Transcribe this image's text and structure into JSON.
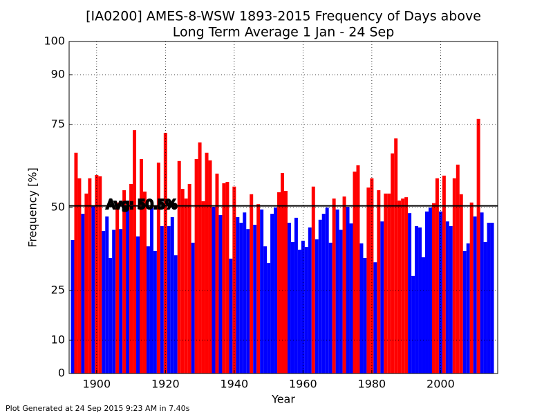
{
  "chart_data": {
    "type": "bar",
    "title": [
      "[IA0200] AMES-8-WSW 1893-2015 Frequency of Days above",
      "Long Term Average 1 Jan - 24 Sep"
    ],
    "x_label": "Year",
    "y_label": "Frequency [%]",
    "footer": "Plot Generated at 24 Sep 2015 9:23 AM in 7.40s",
    "average": 50.5,
    "average_label": "Avg: 50.5%",
    "above_color": "#ff0000",
    "below_color": "#0000ff",
    "x": [
      1893,
      1894,
      1895,
      1896,
      1897,
      1898,
      1899,
      1900,
      1901,
      1902,
      1903,
      1904,
      1905,
      1906,
      1907,
      1908,
      1909,
      1910,
      1911,
      1912,
      1913,
      1914,
      1915,
      1916,
      1917,
      1918,
      1919,
      1920,
      1921,
      1922,
      1923,
      1924,
      1925,
      1926,
      1927,
      1928,
      1929,
      1930,
      1931,
      1932,
      1933,
      1934,
      1935,
      1936,
      1937,
      1938,
      1939,
      1940,
      1941,
      1942,
      1943,
      1944,
      1945,
      1946,
      1947,
      1948,
      1949,
      1950,
      1951,
      1952,
      1953,
      1954,
      1955,
      1956,
      1957,
      1958,
      1959,
      1960,
      1961,
      1962,
      1963,
      1964,
      1965,
      1966,
      1967,
      1968,
      1969,
      1970,
      1971,
      1972,
      1973,
      1974,
      1975,
      1976,
      1977,
      1978,
      1979,
      1980,
      1981,
      1982,
      1983,
      1984,
      1985,
      1986,
      1987,
      1988,
      1989,
      1990,
      1991,
      1992,
      1993,
      1994,
      1995,
      1996,
      1997,
      1998,
      1999,
      2000,
      2001,
      2002,
      2003,
      2004,
      2005,
      2006,
      2007,
      2008,
      2009,
      2010,
      2011,
      2012,
      2013,
      2014,
      2015
    ],
    "values": [
      40.2,
      66.5,
      58.8,
      48.1,
      54.2,
      58.8,
      50.3,
      59.8,
      59.4,
      42.9,
      47.3,
      34.8,
      43.3,
      51.5,
      43.5,
      55.2,
      50.2,
      57.1,
      73.3,
      41.3,
      64.6,
      54.8,
      38.3,
      50.0,
      36.9,
      63.5,
      44.4,
      72.5,
      44.4,
      47.1,
      35.6,
      64.0,
      55.6,
      52.7,
      57.1,
      39.4,
      64.6,
      69.6,
      51.9,
      66.5,
      64.2,
      50.2,
      60.2,
      47.7,
      57.3,
      57.7,
      34.6,
      56.3,
      47.1,
      45.4,
      48.5,
      43.5,
      54.0,
      44.8,
      51.0,
      49.4,
      38.3,
      33.3,
      48.1,
      50.0,
      54.6,
      60.4,
      55.0,
      45.4,
      39.6,
      46.9,
      37.3,
      40.0,
      38.1,
      44.0,
      56.3,
      40.4,
      46.3,
      48.1,
      50.0,
      39.4,
      52.7,
      49.4,
      43.3,
      53.3,
      50.2,
      45.2,
      60.8,
      62.7,
      39.2,
      34.8,
      56.0,
      58.8,
      33.5,
      55.2,
      45.8,
      54.2,
      54.2,
      66.3,
      70.8,
      52.1,
      52.7,
      53.1,
      48.3,
      29.4,
      44.4,
      44.0,
      35.0,
      48.8,
      50.0,
      51.3,
      58.8,
      48.8,
      59.6,
      45.8,
      44.4,
      58.8,
      62.9,
      54.0,
      36.9,
      39.2,
      51.5,
      47.3,
      76.7,
      48.5,
      39.6,
      45.4,
      45.4
    ],
    "xlim": [
      1892,
      2016.6
    ],
    "xticks": [
      1900,
      1920,
      1940,
      1960,
      1980,
      2000
    ],
    "ylim": [
      0,
      100
    ],
    "yticks": [
      0,
      10,
      25,
      50,
      75,
      90,
      100
    ],
    "grid": true
  }
}
